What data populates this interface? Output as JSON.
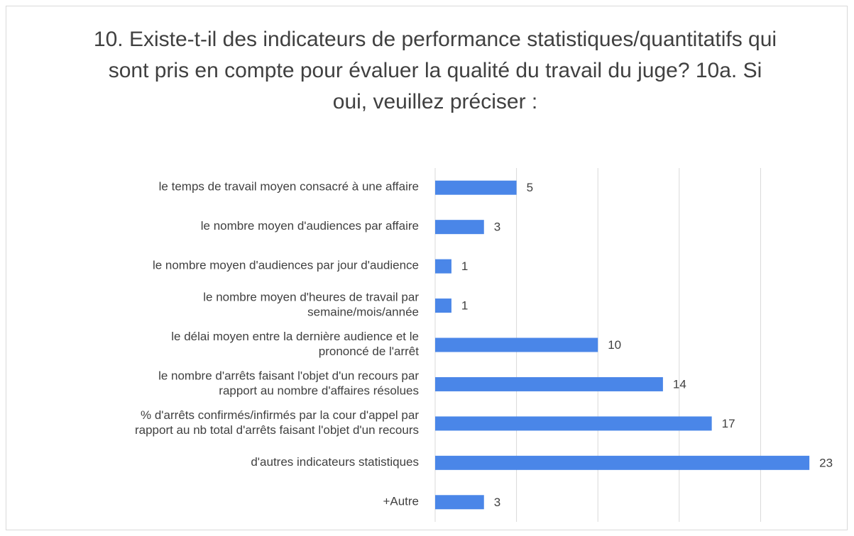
{
  "chart_data": {
    "type": "bar",
    "orientation": "horizontal",
    "title": "10. Existe-t-il des indicateurs de performance statistiques/quantitatifs qui sont pris en compte pour évaluer la qualité du travail du juge? 10a. Si oui, veuillez préciser :",
    "categories": [
      "le temps de travail moyen consacré à une affaire",
      "le nombre moyen d'audiences par affaire",
      "le nombre moyen d'audiences par jour d'audience",
      "le nombre moyen d'heures de travail par\nsemaine/mois/année",
      "le délai moyen entre la dernière audience et le\nprononcé de l'arrêt",
      "le nombre d'arrêts faisant l'objet d'un recours par\nrapport au nombre d'affaires résolues",
      "% d'arrêts confirmés/infirmés par la cour d'appel par\nrapport au nb total d'arrêts faisant l'objet d'un recours",
      "d'autres indicateurs statistiques",
      "+Autre"
    ],
    "values": [
      5,
      3,
      1,
      1,
      10,
      14,
      17,
      23,
      3
    ],
    "color": "#4a86e8",
    "xlim": [
      0,
      25
    ],
    "xticks": [
      0,
      5,
      10,
      15,
      20
    ],
    "grid": true
  }
}
